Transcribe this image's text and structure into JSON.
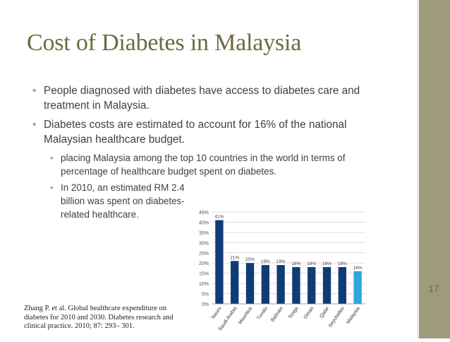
{
  "slide": {
    "title": "Cost of Diabetes in Malaysia",
    "bullets": [
      "People diagnosed with diabetes have access to diabetes care and treatment in Malaysia.",
      "Diabetes costs are estimated to account for 16% of the national Malaysian healthcare budget."
    ],
    "sub_bullets": [
      "placing Malaysia among the top 10 countries in the world in terms of percentage of healthcare budget spent on diabetes.",
      "In 2010, an estimated RM 2.4 billion was spent on diabetes-related healthcare."
    ],
    "citation": "Zhang P. et al. Global healthcare expenditure on diabetes for 2010 and 2030. Diabetes research and clinical practice. 2010; 87: 293– 301.",
    "page_number": "17",
    "bullet_glyph": "•"
  },
  "colors": {
    "title": "#6e6a3e",
    "panel": "#9d9b7c",
    "bar": "#0f3c74",
    "bar_highlight": "#2ea6dc"
  },
  "chart_data": {
    "type": "bar",
    "categories": [
      "Nauru",
      "Saudi Arabia",
      "Mauritius",
      "Tuvalu",
      "Bahrain",
      "Tonga",
      "Oman",
      "Qatar",
      "Seychelles",
      "Malaysia"
    ],
    "values": [
      41,
      21,
      20,
      19,
      19,
      18,
      18,
      18,
      18,
      16
    ],
    "data_labels": [
      "41%",
      "21%",
      "20%",
      "19%",
      "19%",
      "18%",
      "18%",
      "18%",
      "18%",
      "16%"
    ],
    "ylim": [
      0,
      45
    ],
    "yticks": [
      "0%",
      "5%",
      "10%",
      "15%",
      "20%",
      "25%",
      "30%",
      "35%",
      "40%",
      "45%"
    ],
    "highlight": "Malaysia",
    "grid": true,
    "title": "",
    "xlabel": "",
    "ylabel": ""
  }
}
